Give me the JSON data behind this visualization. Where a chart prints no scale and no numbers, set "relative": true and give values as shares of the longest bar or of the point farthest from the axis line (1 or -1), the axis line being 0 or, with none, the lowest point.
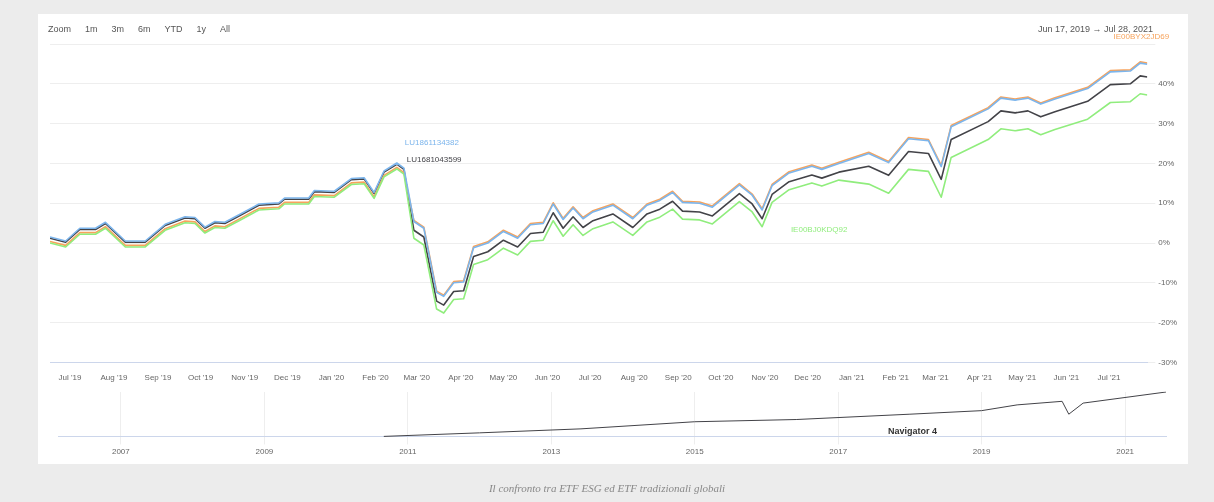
{
  "chart_data": [
    {
      "type": "line",
      "x": [
        "2019-06-17",
        "2019-06-28",
        "2019-07-08",
        "2019-07-19",
        "2019-07-26",
        "2019-08-09",
        "2019-08-23",
        "2019-09-06",
        "2019-09-20",
        "2019-09-27",
        "2019-10-04",
        "2019-10-11",
        "2019-10-18",
        "2019-10-28",
        "2019-11-11",
        "2019-11-25",
        "2019-11-29",
        "2019-12-16",
        "2019-12-20",
        "2020-01-03",
        "2020-01-15",
        "2020-01-24",
        "2020-01-31",
        "2020-02-07",
        "2020-02-16",
        "2020-02-21",
        "2020-02-28",
        "2020-03-06",
        "2020-03-15",
        "2020-03-20",
        "2020-03-27",
        "2020-04-03",
        "2020-04-10",
        "2020-04-20",
        "2020-05-01",
        "2020-05-11",
        "2020-05-20",
        "2020-05-29",
        "2020-06-05",
        "2020-06-12",
        "2020-06-19",
        "2020-06-26",
        "2020-07-03",
        "2020-07-17",
        "2020-07-31",
        "2020-08-10",
        "2020-08-19",
        "2020-08-28",
        "2020-09-04",
        "2020-09-16",
        "2020-09-25",
        "2020-10-14",
        "2020-10-23",
        "2020-10-30",
        "2020-11-06",
        "2020-11-18",
        "2020-12-04",
        "2020-12-11",
        "2020-12-23",
        "2021-01-13",
        "2021-01-27",
        "2021-02-10",
        "2021-02-24",
        "2021-03-05",
        "2021-03-12",
        "2021-04-07",
        "2021-04-16",
        "2021-04-26",
        "2021-05-05",
        "2021-05-14",
        "2021-05-24",
        "2021-06-16",
        "2021-07-02",
        "2021-07-16",
        "2021-07-23",
        "2021-07-28"
      ],
      "series": [
        {
          "name": "LU1861134382",
          "color": "#7cb5ec",
          "values": [
            1.5,
            0.5,
            3.7,
            3.7,
            5.2,
            0.5,
            0.5,
            4.7,
            6.6,
            6.4,
            4,
            5.4,
            5.2,
            7.1,
            9.8,
            10.1,
            11.3,
            11.3,
            13.2,
            13,
            16.2,
            16.4,
            12.7,
            18.1,
            20.1,
            18.8,
            5.4,
            3.7,
            -12.4,
            -13.4,
            -10,
            -9.8,
            -1.2,
            0,
            2.9,
            1.2,
            4.6,
            4.9,
            9.8,
            5.9,
            8.8,
            6.1,
            7.8,
            9.5,
            6.1,
            9.5,
            10.7,
            12.7,
            10.2,
            10,
            9,
            14.6,
            12,
            8.3,
            14.4,
            17.6,
            19.3,
            18.5,
            20,
            22.5,
            20.2,
            26.2,
            25.7,
            19.2,
            29.2,
            33.7,
            36.4,
            35.9,
            36.4,
            34.9,
            36.2,
            38.8,
            43,
            43.2,
            45.2,
            44.9
          ]
        },
        {
          "name": "IE00BJ0KDQ92",
          "color": "#90ed7d",
          "values": [
            0,
            -1,
            2.2,
            2.2,
            3.7,
            -1,
            -1,
            3.2,
            5.1,
            4.9,
            2.5,
            3.9,
            3.7,
            5.6,
            8.3,
            8.6,
            9.8,
            9.8,
            11.7,
            11.5,
            14.7,
            14.9,
            11.2,
            16.6,
            18.6,
            17.3,
            1.2,
            -0.5,
            -16.6,
            -17.6,
            -14.2,
            -14,
            -5.4,
            -4.2,
            -1.3,
            -3,
            0.4,
            0.7,
            5.6,
            1.7,
            4.6,
            1.9,
            3.6,
            5.3,
            1.9,
            5.3,
            6.5,
            8.5,
            6,
            5.8,
            4.8,
            10.4,
            7.8,
            4.1,
            10.2,
            13.4,
            15.1,
            14.3,
            15.8,
            14.8,
            12.5,
            18.5,
            18,
            11.5,
            21.5,
            26,
            28.7,
            28.2,
            28.7,
            27.2,
            28.5,
            31.1,
            35.3,
            35.5,
            37.5,
            37.2
          ]
        },
        {
          "name": "IE00BYX2JD69",
          "color": "#f7a35c",
          "values": [
            0.4,
            -0.6,
            2.6,
            2.6,
            4.1,
            -0.6,
            -0.6,
            3.6,
            5.5,
            5.3,
            2.9,
            4.3,
            4.1,
            6,
            8.7,
            9,
            10.2,
            10.2,
            12.1,
            11.9,
            15.1,
            15.3,
            11.6,
            17,
            19,
            17.7,
            5.7,
            4,
            -12.1,
            -13.1,
            -9.7,
            -9.5,
            -0.9,
            0.3,
            3.2,
            1.5,
            4.9,
            5.2,
            10.1,
            6.2,
            9.1,
            6.4,
            8.1,
            9.8,
            6.4,
            9.8,
            11,
            13,
            10.5,
            10.3,
            9.3,
            14.9,
            12.3,
            8.6,
            14.7,
            17.9,
            19.6,
            18.8,
            20.3,
            22.8,
            20.5,
            26.5,
            26,
            19.5,
            29.5,
            34,
            36.7,
            36.2,
            36.7,
            35.2,
            36.5,
            39.1,
            43.3,
            43.5,
            45.5,
            45.2
          ]
        },
        {
          "name": "LU1681043599",
          "color": "#434348",
          "values": [
            1.2,
            0.2,
            3.4,
            3.4,
            4.9,
            0.2,
            0.2,
            4.4,
            6.3,
            6.1,
            3.7,
            5.1,
            4.9,
            6.8,
            9.5,
            9.8,
            11,
            11,
            12.9,
            12.7,
            15.9,
            16.1,
            12.4,
            17.8,
            19.8,
            18.5,
            3.2,
            1.5,
            -14.6,
            -15.6,
            -12.2,
            -12,
            -3.4,
            -2.2,
            0.7,
            -1,
            2.4,
            2.7,
            7.6,
            3.7,
            6.6,
            3.9,
            5.6,
            7.3,
            3.9,
            7.3,
            8.5,
            10.5,
            8,
            7.8,
            6.8,
            12.4,
            9.8,
            6.1,
            12.2,
            15.4,
            17.1,
            16.3,
            17.8,
            19.3,
            17,
            23,
            22.5,
            16,
            26,
            30.5,
            33.2,
            32.7,
            33.2,
            31.7,
            33,
            35.6,
            39.8,
            40,
            42,
            41.7
          ]
        }
      ],
      "xlim": [
        "2019-06-17",
        "2021-07-28"
      ],
      "xticks": [
        {
          "value": "2019-07-01",
          "label": "Jul '19"
        },
        {
          "value": "2019-08-01",
          "label": "Aug '19"
        },
        {
          "value": "2019-09-01",
          "label": "Sep '19"
        },
        {
          "value": "2019-10-01",
          "label": "Oct '19"
        },
        {
          "value": "2019-11-01",
          "label": "Nov '19"
        },
        {
          "value": "2019-12-01",
          "label": "Dec '19"
        },
        {
          "value": "2020-01-01",
          "label": "Jan '20"
        },
        {
          "value": "2020-02-01",
          "label": "Feb '20"
        },
        {
          "value": "2020-03-01",
          "label": "Mar '20"
        },
        {
          "value": "2020-04-01",
          "label": "Apr '20"
        },
        {
          "value": "2020-05-01",
          "label": "May '20"
        },
        {
          "value": "2020-06-01",
          "label": "Jun '20"
        },
        {
          "value": "2020-07-01",
          "label": "Jul '20"
        },
        {
          "value": "2020-08-01",
          "label": "Aug '20"
        },
        {
          "value": "2020-09-01",
          "label": "Sep '20"
        },
        {
          "value": "2020-10-01",
          "label": "Oct '20"
        },
        {
          "value": "2020-11-01",
          "label": "Nov '20"
        },
        {
          "value": "2020-12-01",
          "label": "Dec '20"
        },
        {
          "value": "2021-01-01",
          "label": "Jan '21"
        },
        {
          "value": "2021-02-01",
          "label": "Feb '21"
        },
        {
          "value": "2021-03-01",
          "label": "Mar '21"
        },
        {
          "value": "2021-04-01",
          "label": "Apr '21"
        },
        {
          "value": "2021-05-01",
          "label": "May '21"
        },
        {
          "value": "2021-06-01",
          "label": "Jun '21"
        },
        {
          "value": "2021-07-01",
          "label": "Jul '21"
        }
      ],
      "ylim": [
        -30,
        50
      ],
      "yticks": [
        {
          "value": -30,
          "label": "-30%"
        },
        {
          "value": -20,
          "label": "-20%"
        },
        {
          "value": -10,
          "label": "-10%"
        },
        {
          "value": 0,
          "label": "0%"
        },
        {
          "value": 10,
          "label": "10%"
        },
        {
          "value": 20,
          "label": "20%"
        },
        {
          "value": 30,
          "label": "30%"
        },
        {
          "value": 40,
          "label": "40%"
        },
        {
          "value": 50,
          "label": null
        }
      ],
      "grid": "y",
      "annotations": [
        "Zoom",
        "1m",
        "3m",
        "6m",
        "YTD",
        "1y",
        "All",
        "Jun 17, 2019 → Jul 28, 2021",
        "Il confronto tra ETF ESG ed ETF tradizionali globali"
      ]
    },
    {
      "type": "line",
      "relative": true,
      "x": [
        "2010-09-01",
        "2012-01-01",
        "2013-06-01",
        "2015-01-01",
        "2016-06-01",
        "2018-01-01",
        "2019-01-01",
        "2019-07-01",
        "2020-02-15",
        "2020-03-20",
        "2020-06-01",
        "2021-07-28"
      ],
      "series": [
        {
          "color": "#434348",
          "values": [
            0,
            0.08,
            0.17,
            0.33,
            0.38,
            0.5,
            0.58,
            0.71,
            0.79,
            0.5,
            0.75,
            1
          ]
        }
      ],
      "xlim": [
        "2006-02-15",
        "2021-07-28"
      ],
      "xticks": [
        {
          "value": "2007-01-01",
          "label": "2007"
        },
        {
          "value": "2009-01-01",
          "label": "2009"
        },
        {
          "value": "2011-01-01",
          "label": "2011"
        },
        {
          "value": "2013-01-01",
          "label": "2013"
        },
        {
          "value": "2015-01-01",
          "label": "2015"
        },
        {
          "value": "2017-01-01",
          "label": "2017"
        },
        {
          "value": "2019-01-01",
          "label": "2019"
        },
        {
          "value": "2021-01-01",
          "label": "2021"
        }
      ],
      "grid": "x",
      "annotations": [
        "Navigator 4"
      ]
    }
  ]
}
